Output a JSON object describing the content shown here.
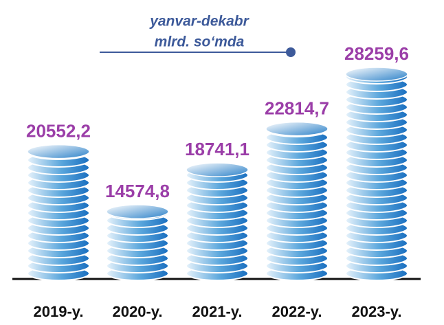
{
  "chart_data": {
    "type": "coin-stack",
    "subtitle": [
      "yanvar-dekabr",
      "mlrd. so‘mda"
    ],
    "categories": [
      "2019-y.",
      "2020-y.",
      "2021-y.",
      "2022-y.",
      "2023-y."
    ],
    "values": [
      20552.2,
      14574.8,
      18741.1,
      22814.7,
      28259.6
    ],
    "value_labels": [
      "20552,2",
      "14574,8",
      "18741,1",
      "22814,7",
      "28259,6"
    ],
    "color": "#1a6fc0",
    "label_color": "#9b3ea8"
  }
}
